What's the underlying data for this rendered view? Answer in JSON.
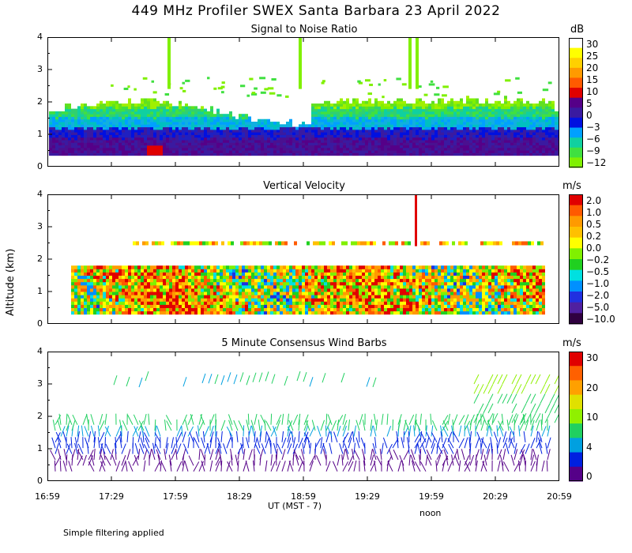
{
  "title": "449 MHz Profiler SWEX Santa Barbara 23 April 2022",
  "ylabel": "Altitude (km)",
  "xlabel": "UT  (MST - 7)",
  "noon_label": "noon",
  "footer": "Simple filtering applied",
  "x_ticks": [
    "16:59",
    "17:29",
    "17:59",
    "18:29",
    "18:59",
    "19:29",
    "19:59",
    "20:29",
    "20:59"
  ],
  "y_ticks": [
    "0",
    "1",
    "2",
    "3",
    "4"
  ],
  "panels": [
    {
      "title": "Signal to Noise Ratio",
      "unit": "dB",
      "colorbar": {
        "labels": [
          "30",
          "25",
          "20",
          "15",
          "10",
          "5",
          "0",
          "−3",
          "−6",
          "−9",
          "−12"
        ],
        "colors": [
          "#ffffff",
          "#ffff00",
          "#ffd000",
          "#ff9a00",
          "#ff5a00",
          "#e00000",
          "#550088",
          "#3a1aa0",
          "#0010e0",
          "#00a0ff",
          "#10d0a0",
          "#40e040",
          "#80f000"
        ]
      }
    },
    {
      "title": "Vertical Velocity",
      "unit": "m/s",
      "colorbar": {
        "labels": [
          "2.0",
          "1.0",
          "0.5",
          "0.2",
          "0.0",
          "−0.2",
          "−0.5",
          "−1.0",
          "−2.0",
          "−5.0",
          "−10.0"
        ],
        "colors": [
          "#e00000",
          "#ff5a00",
          "#ff9a00",
          "#ffc000",
          "#ffff00",
          "#80f000",
          "#20d020",
          "#00e0e0",
          "#0090ff",
          "#2030e0",
          "#5020a0",
          "#300040"
        ]
      }
    },
    {
      "title": "5 Minute Consensus Wind Barbs",
      "unit": "m/s",
      "colorbar": {
        "labels": [
          "30",
          "20",
          "10",
          "4",
          "0"
        ],
        "colors": [
          "#e00000",
          "#ff6000",
          "#ffa000",
          "#e0e000",
          "#90f000",
          "#20d060",
          "#00a0e0",
          "#0020e0",
          "#550088"
        ]
      }
    }
  ],
  "chart_data": [
    {
      "type": "heatmap",
      "title": "Signal to Noise Ratio",
      "ylabel": "Altitude (km)",
      "xlabel": "UT  (MST - 7)",
      "x_range": [
        "16:59",
        "20:59"
      ],
      "ylim": [
        0,
        4
      ],
      "colorbar_unit": "dB",
      "colorbar_ticks": [
        30,
        25,
        20,
        15,
        10,
        5,
        0,
        -3,
        -6,
        -9,
        -12
      ],
      "layers": [
        {
          "top_km": 0.8,
          "value_db": 5
        },
        {
          "top_km": 1.1,
          "value_db": 0
        },
        {
          "top_km": 1.5,
          "value_db": -6
        },
        {
          "top_km": 1.8,
          "value_db": -9
        },
        {
          "top_km": 2.3,
          "value_db": -12
        }
      ]
    },
    {
      "type": "heatmap",
      "title": "Vertical Velocity",
      "ylabel": "Altitude (km)",
      "xlabel": "UT  (MST - 7)",
      "x_range": [
        "16:59",
        "20:59"
      ],
      "ylim": [
        0,
        4
      ],
      "colorbar_unit": "m/s",
      "colorbar_ticks": [
        2.0,
        1.0,
        0.5,
        0.2,
        0.0,
        -0.2,
        -0.5,
        -1.0,
        -2.0,
        -5.0,
        -10.0
      ]
    },
    {
      "type": "scatter",
      "title": "5 Minute Consensus Wind Barbs",
      "ylabel": "Altitude (km)",
      "xlabel": "UT  (MST - 7)",
      "x_range": [
        "16:59",
        "20:59"
      ],
      "ylim": [
        0,
        4
      ],
      "colorbar_unit": "m/s",
      "colorbar_ticks": [
        30,
        20,
        10,
        4,
        0
      ]
    }
  ]
}
